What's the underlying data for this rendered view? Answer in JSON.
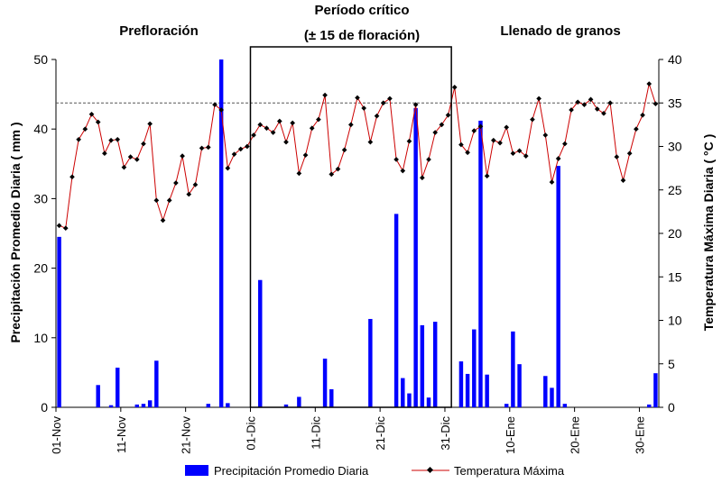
{
  "chart_data": {
    "type": "bar+line",
    "phases": [
      {
        "label": "Prefloración"
      },
      {
        "label": "Período crítico",
        "sublabel": "(± 15 de floración)"
      },
      {
        "label": "Llenado de granos"
      }
    ],
    "left_axis": {
      "label": "Precipitación Promedio Diaria ( mm )",
      "range": [
        0,
        50
      ],
      "ticks": [
        "0",
        "10",
        "20",
        "30",
        "40",
        "50"
      ]
    },
    "right_axis": {
      "label": "Temperatura Máxima Diaria (   °C )",
      "range": [
        0,
        40
      ],
      "ticks": [
        "0",
        "5",
        "10",
        "15",
        "20",
        "25",
        "30",
        "35",
        "40"
      ]
    },
    "x_ticks": [
      {
        "day": 0,
        "label": "01-Nov"
      },
      {
        "day": 10,
        "label": "11-Nov"
      },
      {
        "day": 20,
        "label": "21-Nov"
      },
      {
        "day": 30,
        "label": "01-Dic"
      },
      {
        "day": 40,
        "label": "11-Dic"
      },
      {
        "day": 50,
        "label": "21-Dic"
      },
      {
        "day": 60,
        "label": "31-Dic"
      },
      {
        "day": 70,
        "label": "10-Ene"
      },
      {
        "day": 80,
        "label": "20-Ene"
      },
      {
        "day": 90,
        "label": "30-Ene"
      }
    ],
    "reference_line": {
      "axis": "right",
      "value": 35
    },
    "critical_period": {
      "start_day": 30,
      "end_day": 61
    },
    "series": [
      {
        "name": "Precipitación Promedio Diaria",
        "type": "bar",
        "axis": "left",
        "color": "#0000FF",
        "values": [
          24.5,
          0,
          0,
          0,
          0,
          0,
          3.2,
          0,
          0.3,
          5.7,
          0,
          0,
          0.4,
          0.5,
          1,
          6.7,
          0,
          0,
          0,
          0,
          0,
          0,
          0,
          0.5,
          0,
          50,
          0.6,
          0,
          0,
          0,
          0,
          18.3,
          0,
          0,
          0,
          0.4,
          0,
          1.5,
          0,
          0,
          0,
          7,
          2.6,
          0,
          0,
          0,
          0,
          0,
          12.7,
          0,
          0,
          0,
          27.8,
          4.2,
          2,
          43,
          11.8,
          1.4,
          12.3,
          0,
          0,
          0,
          6.6,
          4.8,
          11.2,
          41.2,
          4.7,
          0,
          0,
          0.5,
          10.9,
          6.2,
          0,
          0,
          0,
          4.5,
          2.8,
          34.7,
          0.5,
          0,
          0,
          0,
          0,
          0,
          0,
          0,
          0,
          0,
          0,
          0,
          0,
          0.4,
          4.9
        ]
      },
      {
        "name": "Temperatura Máxima",
        "type": "line",
        "axis": "right",
        "color": "#CC0000",
        "values": [
          20.9,
          20.6,
          26.5,
          30.8,
          32,
          33.7,
          32.8,
          29.2,
          30.7,
          30.8,
          27.6,
          28.8,
          28.5,
          30.3,
          32.6,
          23.8,
          21.5,
          23.8,
          25.8,
          28.9,
          24.5,
          25.6,
          29.8,
          29.9,
          34.8,
          34.2,
          27.5,
          29.1,
          29.7,
          30,
          31.3,
          32.5,
          32.1,
          31.6,
          32.9,
          30.5,
          32.7,
          26.9,
          29,
          32.1,
          33.1,
          35.9,
          26.8,
          27.4,
          29.6,
          32.5,
          35.6,
          34.4,
          30.5,
          33.5,
          35,
          35.5,
          28.5,
          27.2,
          30.6,
          34.8,
          26.4,
          28.5,
          31.6,
          32.5,
          33.6,
          36.8,
          30.2,
          29.3,
          31.8,
          32.3,
          26.6,
          30.7,
          30.4,
          32.2,
          29.2,
          29.5,
          28.9,
          33.1,
          35.5,
          31.3,
          25.9,
          28.6,
          30.3,
          34.2,
          35.1,
          34.8,
          35.4,
          34.3,
          33.8,
          35,
          28.8,
          26.1,
          29.2,
          32,
          33.6,
          37.2,
          34.9
        ]
      }
    ]
  }
}
